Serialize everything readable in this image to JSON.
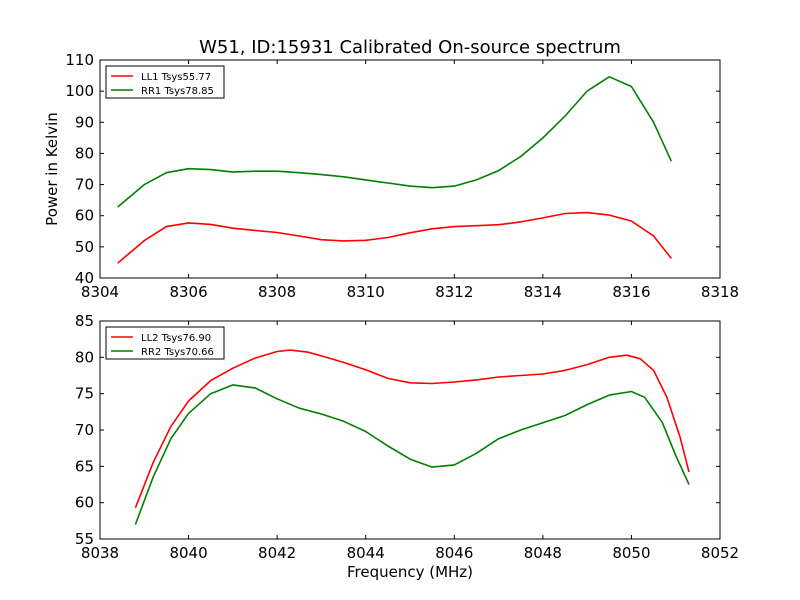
{
  "figure": {
    "title": "W51, ID:15931 Calibrated On-source spectrum",
    "ylabel": "Power in Kelvin",
    "xlabel": "Frequency (MHz)"
  },
  "chart_data": [
    {
      "type": "line",
      "title": "W51, ID:15931 Calibrated On-source spectrum",
      "xlabel": "",
      "ylabel": "Power in Kelvin",
      "xlim": [
        8304,
        8318
      ],
      "ylim": [
        40,
        110
      ],
      "xticks": [
        8304,
        8306,
        8308,
        8310,
        8312,
        8314,
        8316,
        8318
      ],
      "yticks": [
        40,
        50,
        60,
        70,
        80,
        90,
        100,
        110
      ],
      "legend_position": "upper-left",
      "grid": false,
      "series": [
        {
          "name": "LL1 Tsys55.77",
          "color": "#ff0000",
          "points": [
            [
              8304.4,
              44.8
            ],
            [
              8305,
              52
            ],
            [
              8305.5,
              56.5
            ],
            [
              8306,
              57.7
            ],
            [
              8306.5,
              57.2
            ],
            [
              8307,
              56
            ],
            [
              8307.5,
              55.3
            ],
            [
              8308,
              54.6
            ],
            [
              8308.5,
              53.5
            ],
            [
              8309,
              52.3
            ],
            [
              8309.5,
              51.9
            ],
            [
              8310,
              52.1
            ],
            [
              8310.5,
              53
            ],
            [
              8311,
              54.5
            ],
            [
              8311.5,
              55.8
            ],
            [
              8312,
              56.5
            ],
            [
              8312.5,
              56.8
            ],
            [
              8313,
              57.1
            ],
            [
              8313.5,
              58
            ],
            [
              8314,
              59.3
            ],
            [
              8314.5,
              60.7
            ],
            [
              8315,
              61
            ],
            [
              8315.5,
              60.2
            ],
            [
              8316,
              58.3
            ],
            [
              8316.5,
              53.5
            ],
            [
              8316.9,
              46.3
            ]
          ]
        },
        {
          "name": "RR1 Tsys78.85",
          "color": "#008000",
          "points": [
            [
              8304.4,
              62.8
            ],
            [
              8305,
              70
            ],
            [
              8305.5,
              73.8
            ],
            [
              8306,
              75.1
            ],
            [
              8306.5,
              74.8
            ],
            [
              8307,
              74
            ],
            [
              8307.5,
              74.3
            ],
            [
              8308,
              74.3
            ],
            [
              8308.5,
              73.8
            ],
            [
              8309,
              73.2
            ],
            [
              8309.5,
              72.5
            ],
            [
              8310,
              71.5
            ],
            [
              8310.5,
              70.5
            ],
            [
              8311,
              69.5
            ],
            [
              8311.5,
              69
            ],
            [
              8312,
              69.5
            ],
            [
              8312.5,
              71.5
            ],
            [
              8313,
              74.5
            ],
            [
              8313.5,
              79
            ],
            [
              8314,
              85
            ],
            [
              8314.5,
              92
            ],
            [
              8315,
              100
            ],
            [
              8315.5,
              104.6
            ],
            [
              8316,
              101.5
            ],
            [
              8316.5,
              90
            ],
            [
              8316.9,
              77.5
            ]
          ]
        }
      ]
    },
    {
      "type": "line",
      "title": "",
      "xlabel": "Frequency (MHz)",
      "ylabel": "",
      "xlim": [
        8038,
        8052
      ],
      "ylim": [
        55,
        85
      ],
      "xticks": [
        8038,
        8040,
        8042,
        8044,
        8046,
        8048,
        8050,
        8052
      ],
      "yticks": [
        55,
        60,
        65,
        70,
        75,
        80,
        85
      ],
      "legend_position": "upper-left",
      "grid": false,
      "series": [
        {
          "name": "LL2 Tsys76.90",
          "color": "#ff0000",
          "points": [
            [
              8038.8,
              59.3
            ],
            [
              8039.2,
              65.5
            ],
            [
              8039.6,
              70.5
            ],
            [
              8040,
              74
            ],
            [
              8040.5,
              76.8
            ],
            [
              8041,
              78.5
            ],
            [
              8041.5,
              79.9
            ],
            [
              8042,
              80.8
            ],
            [
              8042.3,
              81
            ],
            [
              8042.7,
              80.7
            ],
            [
              8043,
              80.2
            ],
            [
              8043.5,
              79.3
            ],
            [
              8044,
              78.3
            ],
            [
              8044.5,
              77.1
            ],
            [
              8045,
              76.5
            ],
            [
              8045.5,
              76.4
            ],
            [
              8046,
              76.6
            ],
            [
              8046.5,
              76.9
            ],
            [
              8047,
              77.3
            ],
            [
              8047.5,
              77.5
            ],
            [
              8048,
              77.7
            ],
            [
              8048.5,
              78.2
            ],
            [
              8049,
              79
            ],
            [
              8049.5,
              80
            ],
            [
              8049.9,
              80.3
            ],
            [
              8050.2,
              79.8
            ],
            [
              8050.5,
              78.2
            ],
            [
              8050.8,
              74.5
            ],
            [
              8051.1,
              69
            ],
            [
              8051.3,
              64.2
            ]
          ]
        },
        {
          "name": "RR2 Tsys70.66",
          "color": "#008000",
          "points": [
            [
              8038.8,
              57
            ],
            [
              8039.2,
              63.5
            ],
            [
              8039.6,
              68.8
            ],
            [
              8040,
              72.3
            ],
            [
              8040.5,
              75
            ],
            [
              8041,
              76.2
            ],
            [
              8041.5,
              75.8
            ],
            [
              8042,
              74.3
            ],
            [
              8042.5,
              73
            ],
            [
              8043,
              72.2
            ],
            [
              8043.5,
              71.2
            ],
            [
              8044,
              69.8
            ],
            [
              8044.5,
              67.8
            ],
            [
              8045,
              66
            ],
            [
              8045.5,
              64.9
            ],
            [
              8046,
              65.2
            ],
            [
              8046.5,
              66.8
            ],
            [
              8047,
              68.8
            ],
            [
              8047.5,
              70
            ],
            [
              8048,
              71
            ],
            [
              8048.5,
              72
            ],
            [
              8049,
              73.5
            ],
            [
              8049.5,
              74.8
            ],
            [
              8050,
              75.3
            ],
            [
              8050.3,
              74.5
            ],
            [
              8050.7,
              71
            ],
            [
              8051,
              66.5
            ],
            [
              8051.3,
              62.5
            ]
          ]
        }
      ]
    }
  ]
}
